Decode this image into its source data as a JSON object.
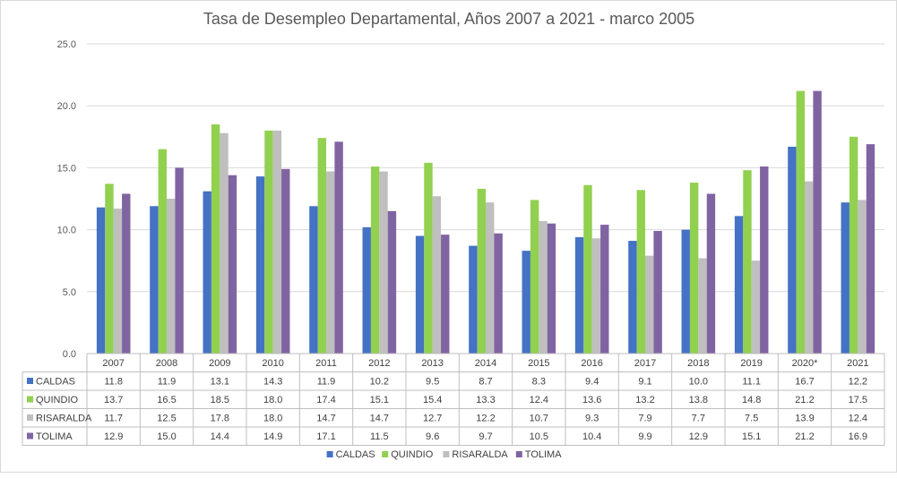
{
  "chart_data": {
    "type": "bar",
    "title": "Tasa de Desempleo Departamental, Años 2007 a 2021 - marco 2005",
    "xlabel": "",
    "ylabel": "",
    "ylim": [
      0,
      25
    ],
    "yticks": [
      "0.0",
      "5.0",
      "10.0",
      "15.0",
      "20.0",
      "25.0"
    ],
    "grid": true,
    "legend_position": "bottom",
    "data_table": true,
    "categories": [
      "2007",
      "2008",
      "2009",
      "2010",
      "2011",
      "2012",
      "2013",
      "2014",
      "2015",
      "2016",
      "2017",
      "2018",
      "2019",
      "2020*",
      "2021"
    ],
    "series": [
      {
        "name": "CALDAS",
        "color": "#4472c4",
        "values": [
          11.8,
          11.9,
          13.1,
          14.3,
          11.9,
          10.2,
          9.5,
          8.7,
          8.3,
          9.4,
          9.1,
          10.0,
          11.1,
          16.7,
          12.2
        ]
      },
      {
        "name": "QUINDIO",
        "color": "#92d050",
        "values": [
          13.7,
          16.5,
          18.5,
          18.0,
          17.4,
          15.1,
          15.4,
          13.3,
          12.4,
          13.6,
          13.2,
          13.8,
          14.8,
          21.2,
          17.5
        ]
      },
      {
        "name": "RISARALDA",
        "color": "#bfbfbf",
        "values": [
          11.7,
          12.5,
          17.8,
          18.0,
          14.7,
          14.7,
          12.7,
          12.2,
          10.7,
          9.3,
          7.9,
          7.7,
          7.5,
          13.9,
          12.4
        ]
      },
      {
        "name": "TOLIMA",
        "color": "#8064a2",
        "values": [
          12.9,
          15.0,
          14.4,
          14.9,
          17.1,
          11.5,
          9.6,
          9.7,
          10.5,
          10.4,
          9.9,
          12.9,
          15.1,
          21.2,
          16.9
        ]
      }
    ]
  }
}
